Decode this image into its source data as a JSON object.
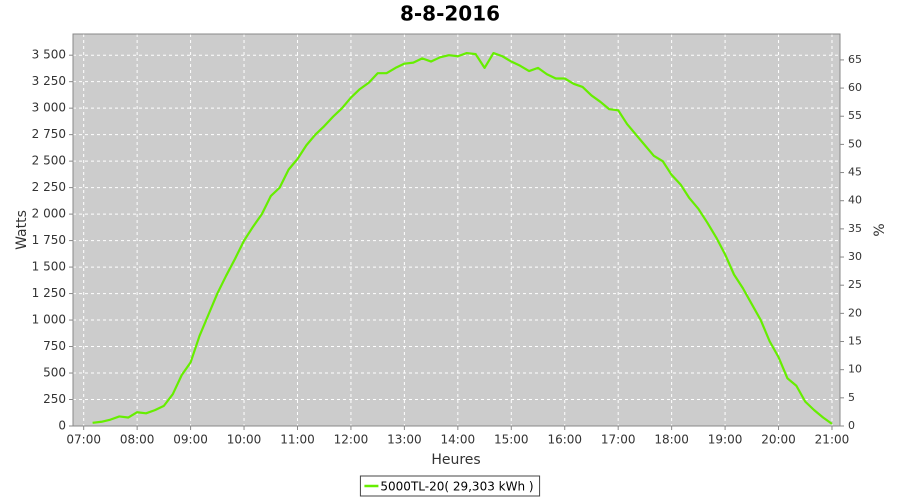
{
  "chart_data": {
    "type": "line",
    "title": "8-8-2016",
    "x_label": "Heures",
    "y_label": "Watts",
    "y2_label": "%",
    "xlim": [
      "06:48",
      "21:09"
    ],
    "xticks": [
      "07:00",
      "08:00",
      "09:00",
      "10:00",
      "11:00",
      "12:00",
      "13:00",
      "14:00",
      "15:00",
      "16:00",
      "17:00",
      "18:00",
      "19:00",
      "20:00",
      "21:00"
    ],
    "ylim": [
      0,
      3700
    ],
    "yticks": [
      0,
      250,
      500,
      750,
      {
        "value": 1000,
        "label": "1 000"
      },
      {
        "value": 1250,
        "label": "1 250"
      },
      {
        "value": 1500,
        "label": "1 500"
      },
      {
        "value": 1750,
        "label": "1 750"
      },
      {
        "value": 2000,
        "label": "2 000"
      },
      {
        "value": 2250,
        "label": "2 250"
      },
      {
        "value": 2500,
        "label": "2 500"
      },
      {
        "value": 2750,
        "label": "2 750"
      },
      {
        "value": 3000,
        "label": "3 000"
      },
      {
        "value": 3250,
        "label": "3 250"
      },
      {
        "value": 3500,
        "label": "3 500"
      }
    ],
    "y2lim": [
      0,
      69.6
    ],
    "y2ticks": [
      0,
      5,
      10,
      15,
      20,
      25,
      30,
      35,
      40,
      45,
      50,
      55,
      60,
      65
    ],
    "grid": true,
    "legend_position": "bottom",
    "x": [
      "07:10",
      "07:20",
      "07:30",
      "07:40",
      "07:50",
      "08:00",
      "08:10",
      "08:20",
      "08:30",
      "08:40",
      "08:50",
      "09:00",
      "09:10",
      "09:20",
      "09:30",
      "09:40",
      "09:50",
      "10:00",
      "10:10",
      "10:20",
      "10:30",
      "10:40",
      "10:50",
      "11:00",
      "11:10",
      "11:20",
      "11:30",
      "11:40",
      "11:50",
      "12:00",
      "12:10",
      "12:20",
      "12:30",
      "12:40",
      "12:50",
      "13:00",
      "13:10",
      "13:20",
      "13:30",
      "13:40",
      "13:50",
      "14:00",
      "14:10",
      "14:20",
      "14:30",
      "14:40",
      "14:50",
      "15:00",
      "15:10",
      "15:20",
      "15:30",
      "15:40",
      "15:50",
      "16:00",
      "16:10",
      "16:20",
      "16:30",
      "16:40",
      "16:50",
      "17:00",
      "17:10",
      "17:20",
      "17:30",
      "17:40",
      "17:50",
      "18:00",
      "18:10",
      "18:20",
      "18:30",
      "18:40",
      "18:50",
      "19:00",
      "19:10",
      "19:20",
      "19:30",
      "19:40",
      "19:50",
      "20:00",
      "20:10",
      "20:20",
      "20:30",
      "20:40",
      "20:50",
      "21:00"
    ],
    "series": [
      {
        "name": "5000TL-20( 29,303 kWh )",
        "color": "#66ee00",
        "values": [
          30,
          40,
          60,
          90,
          80,
          130,
          120,
          150,
          190,
          300,
          480,
          600,
          850,
          1050,
          1250,
          1420,
          1580,
          1750,
          1880,
          2000,
          2170,
          2250,
          2420,
          2520,
          2650,
          2750,
          2830,
          2920,
          3000,
          3100,
          3180,
          3240,
          3330,
          3330,
          3380,
          3420,
          3430,
          3470,
          3440,
          3480,
          3500,
          3490,
          3520,
          3510,
          3380,
          3520,
          3490,
          3440,
          3400,
          3350,
          3380,
          3320,
          3280,
          3280,
          3230,
          3200,
          3120,
          3060,
          2990,
          2980,
          2850,
          2750,
          2650,
          2550,
          2500,
          2370,
          2280,
          2150,
          2050,
          1920,
          1780,
          1620,
          1430,
          1300,
          1150,
          1000,
          800,
          650,
          450,
          380,
          230,
          150,
          80,
          20
        ]
      }
    ]
  }
}
